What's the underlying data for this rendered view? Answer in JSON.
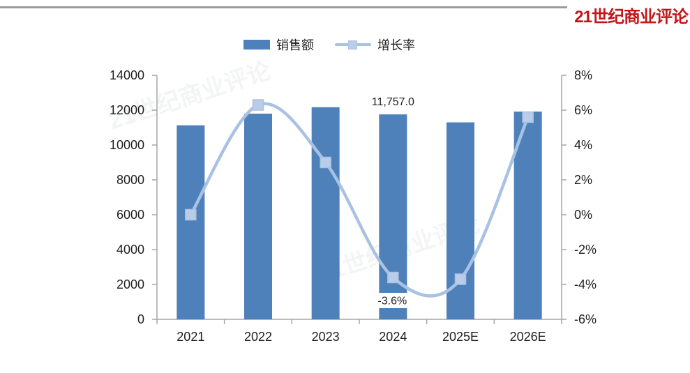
{
  "header": {
    "logo_text": "21世纪商业评论",
    "logo_color": "#C3161B",
    "divider_color": "#9C9C9C"
  },
  "watermark": {
    "text": "21世纪商业评论"
  },
  "chart_data": {
    "type": "combo",
    "categories": [
      "2021",
      "2022",
      "2023",
      "2024",
      "2025E",
      "2026E"
    ],
    "series": [
      {
        "name": "销售额",
        "type": "bar",
        "axis": "left",
        "color": "#4E81BA",
        "values": [
          11130,
          11800,
          12170,
          11757,
          11300,
          11920
        ]
      },
      {
        "name": "增长率",
        "type": "line",
        "axis": "right",
        "color": "#A9C2E3",
        "marker_color": "#BACCE8",
        "values": [
          0.0,
          6.3,
          3.0,
          -3.6,
          -3.7,
          5.6
        ]
      }
    ],
    "left_axis": {
      "min": 0,
      "max": 14000,
      "step": 2000
    },
    "right_axis": {
      "min": -6,
      "max": 8,
      "step": 2,
      "suffix": "%"
    },
    "data_labels": [
      {
        "series": 0,
        "index": 3,
        "text": "11,757.0"
      },
      {
        "series": 1,
        "index": 3,
        "text": "-3.6%",
        "bg": "#FFFFFF"
      }
    ],
    "grid": false,
    "legend_position": "top",
    "axis_color": "#A6A6A6",
    "text_color": "#1F1F1F"
  }
}
